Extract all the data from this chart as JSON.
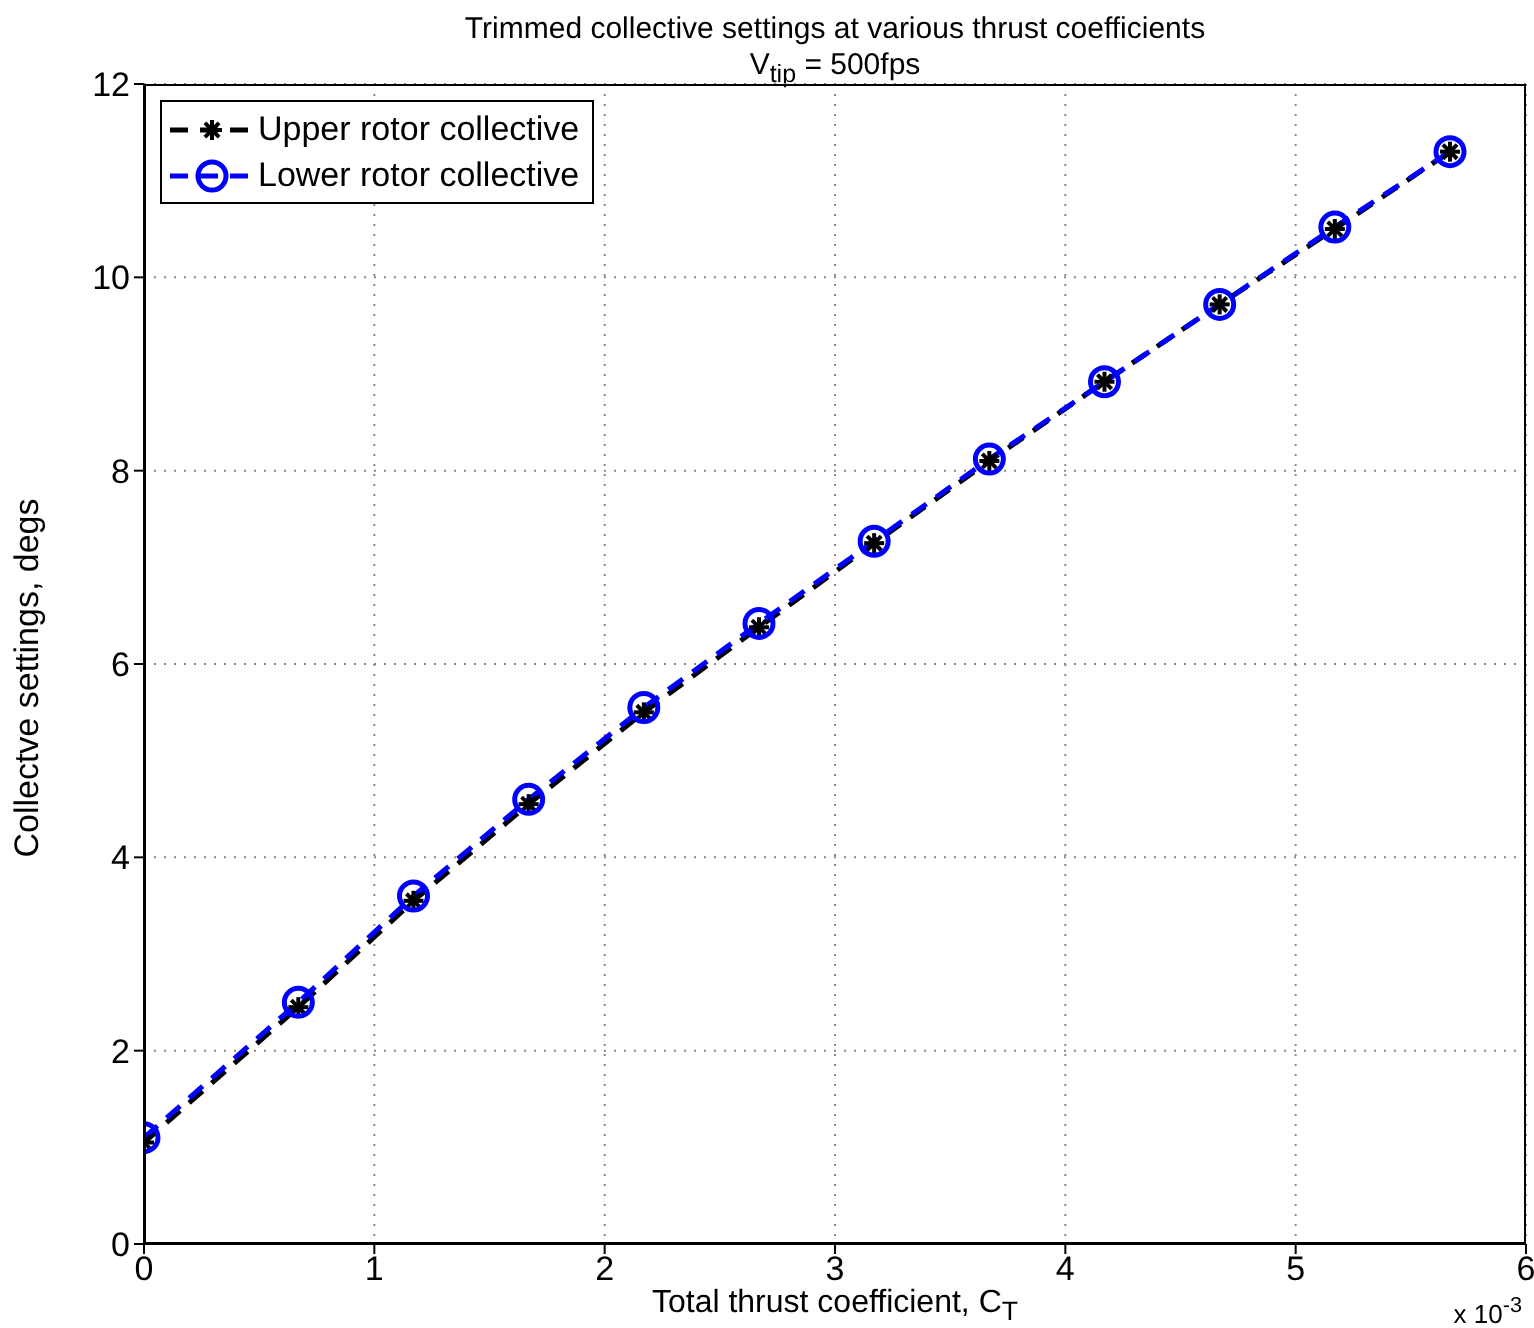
{
  "chart_data": {
    "type": "line",
    "title": "Trimmed collective settings at various thrust coefficients",
    "subtitle": "V$_{tip}$ = 500fps",
    "xlabel": "Total thrust coefficient, C$_{T}$",
    "ylabel": "Collectve settings, degs",
    "annotations": [
      "x 10$^{-3}$"
    ],
    "x": [
      0,
      0.67,
      1.17,
      1.67,
      2.17,
      2.67,
      3.17,
      3.67,
      4.17,
      4.67,
      5.17,
      5.67
    ],
    "series": [
      {
        "name": "Upper rotor collective",
        "color": "#000000",
        "marker": "cross",
        "line_style": "dashed",
        "values": [
          1.05,
          2.45,
          3.55,
          4.55,
          5.5,
          6.38,
          7.25,
          8.1,
          8.92,
          9.72,
          10.5,
          11.3
        ]
      },
      {
        "name": "Lower rotor collective",
        "color": "#0000ff",
        "marker": "circle",
        "line_style": "dashed",
        "values": [
          1.1,
          2.5,
          3.6,
          4.6,
          5.55,
          6.42,
          7.27,
          8.12,
          8.92,
          9.72,
          10.52,
          11.3
        ]
      }
    ],
    "xlim": [
      0,
      6
    ],
    "xticks": [
      0,
      1,
      2,
      3,
      4,
      5,
      6
    ],
    "ylim": [
      0,
      12
    ],
    "yticks": [
      0,
      2,
      4,
      6,
      8,
      10,
      12
    ],
    "grid": true,
    "legend": "top left"
  }
}
